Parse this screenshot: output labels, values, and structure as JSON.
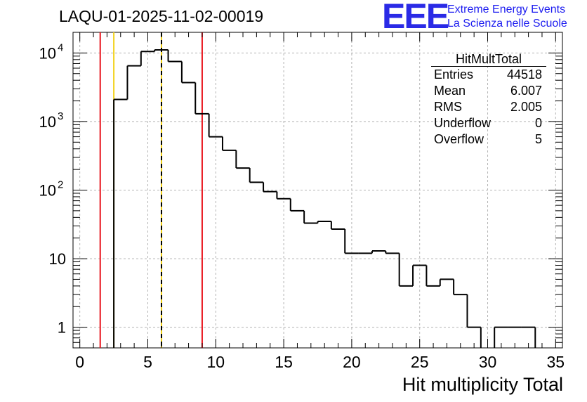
{
  "title": "LAQU-01-2025-11-02-00019",
  "logo": {
    "mark": "EEE",
    "line1": "Extreme Energy Events",
    "line2": "La Scienza nelle Scuole",
    "color": "#1c1cf0"
  },
  "stats_box": {
    "name": "HitMultTotal",
    "rows": [
      {
        "label": "Entries",
        "value": "44518"
      },
      {
        "label": "Mean",
        "value": "6.007"
      },
      {
        "label": "RMS",
        "value": "2.005"
      },
      {
        "label": "Underflow",
        "value": "0"
      },
      {
        "label": "Overflow",
        "value": "5"
      }
    ]
  },
  "chart_data": {
    "type": "histogram",
    "title": "LAQU-01-2025-11-02-00019",
    "xlabel": "Hit multiplicity Total",
    "ylabel": "",
    "xlim": [
      -0.5,
      35.5
    ],
    "ylim": [
      0.5,
      20000
    ],
    "yscale": "log",
    "grid": true,
    "bin_edges": [
      1.5,
      2.5,
      3.5,
      4.5,
      5.5,
      6.5,
      7.5,
      8.5,
      9.5,
      10.5,
      11.5,
      12.5,
      13.5,
      14.5,
      15.5,
      16.5,
      17.5,
      18.5,
      19.5,
      20.5,
      21.5,
      22.5,
      23.5,
      24.5,
      25.5,
      26.5,
      27.5,
      28.5,
      29.5,
      30.5,
      31.5,
      32.5,
      33.5
    ],
    "counts": [
      0,
      2100,
      6500,
      10500,
      11100,
      7500,
      3700,
      1300,
      600,
      380,
      210,
      130,
      95,
      75,
      50,
      33,
      35,
      27,
      12,
      12,
      13,
      12,
      4,
      8,
      4,
      5,
      3,
      1,
      0,
      1,
      1,
      1
    ],
    "xticks": [
      0,
      5,
      10,
      15,
      20,
      25,
      30,
      35
    ],
    "ytick_values": [
      1,
      10,
      100,
      1000,
      10000
    ],
    "ytick_labels": [
      {
        "base": "1",
        "exp": ""
      },
      {
        "base": "10",
        "exp": ""
      },
      {
        "base": "10",
        "exp": "2"
      },
      {
        "base": "10",
        "exp": "3"
      },
      {
        "base": "10",
        "exp": "4"
      }
    ],
    "vlines": [
      {
        "x": 1.5,
        "color": "#e8141c",
        "style": "solid"
      },
      {
        "x": 2.5,
        "color": "#f2d21e",
        "style": "solid"
      },
      {
        "x": 6.007,
        "color": "#f2d21e",
        "style": "solid"
      },
      {
        "x": 6.007,
        "color": "#000000",
        "style": "dashed"
      },
      {
        "x": 9.0,
        "color": "#e8141c",
        "style": "solid"
      }
    ],
    "line_color": "#000000",
    "grid_color": "#b4b4b4"
  }
}
